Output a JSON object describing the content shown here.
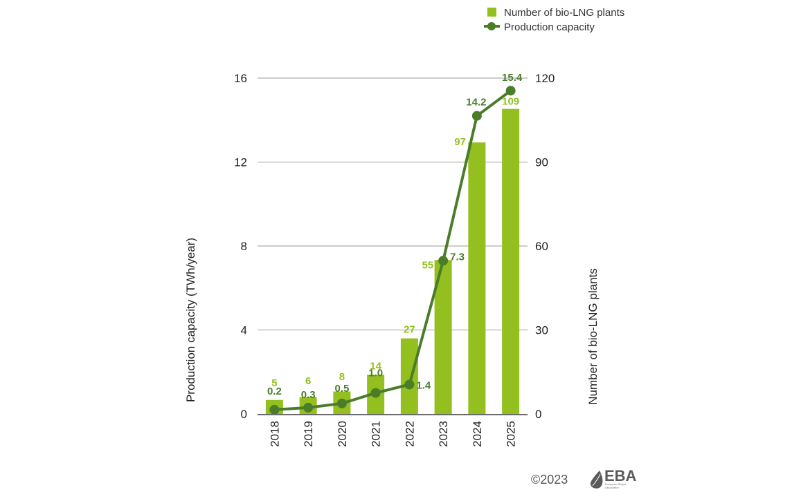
{
  "chart_data": {
    "type": "bar",
    "title": "",
    "categories": [
      "2018",
      "2019",
      "2020",
      "2021",
      "2022",
      "2023",
      "2024",
      "2025"
    ],
    "series": [
      {
        "name": "Number of bio-LNG plants",
        "type": "bar",
        "axis": "right",
        "values": [
          5,
          6,
          8,
          14,
          27,
          55,
          97,
          109
        ],
        "labels": [
          "5",
          "6",
          "8",
          "14",
          "27",
          "55",
          "97",
          "109"
        ],
        "color": "#93c01f"
      },
      {
        "name": "Production capacity",
        "type": "line",
        "axis": "left",
        "values": [
          0.2,
          0.3,
          0.5,
          1.0,
          1.4,
          7.3,
          14.2,
          15.4
        ],
        "labels": [
          "0.2",
          "0.3",
          "0.5",
          "1.0",
          "1.4",
          "7.3",
          "14.2",
          "15.4"
        ],
        "color": "#4a7c2a"
      }
    ],
    "ylabel_left": "Production capacity (TWh/year)",
    "ylabel_right": "Number of bio-LNG plants",
    "ylim_left": [
      0,
      16
    ],
    "ylim_right": [
      0,
      120
    ],
    "yticks_left": [
      "0",
      "4",
      "8",
      "12",
      "16"
    ],
    "yticks_right": [
      "0",
      "30",
      "60",
      "90",
      "120"
    ],
    "grid": true,
    "legend_position": "top-right"
  },
  "legend": {
    "items": [
      {
        "label": "Number of bio-LNG plants",
        "icon": "square-icon"
      },
      {
        "label": "Production capacity",
        "icon": "line-dot-icon"
      }
    ]
  },
  "footer": {
    "copyright": "©2023",
    "logo_text": "EBA",
    "logo_subtext_1": "European Biogas",
    "logo_subtext_2": "Association"
  }
}
